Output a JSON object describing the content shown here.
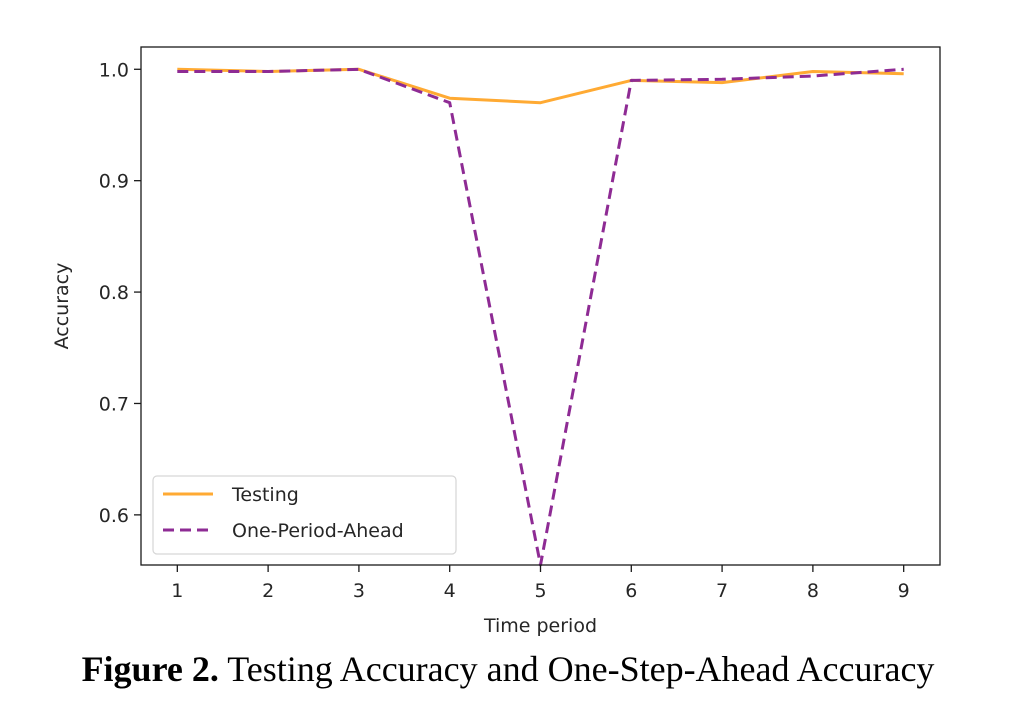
{
  "chart_data": {
    "type": "line",
    "x": [
      1,
      2,
      3,
      4,
      5,
      6,
      7,
      8,
      9
    ],
    "xticks": [
      "1",
      "2",
      "3",
      "4",
      "5",
      "6",
      "7",
      "8",
      "9"
    ],
    "yticks": [
      "1.0",
      "0.9",
      "0.8",
      "0.7",
      "0.6"
    ],
    "ytick_values": [
      1.0,
      0.9,
      0.8,
      0.7,
      0.6
    ],
    "xlim": [
      0.6,
      9.4
    ],
    "ylim": [
      0.555,
      1.02
    ],
    "xlabel": "Time period",
    "ylabel": "Accuracy",
    "grid": false,
    "legend_position": "lower-left",
    "series": [
      {
        "name": "Testing",
        "color": "#ffaa33",
        "style": "solid",
        "values": [
          1.0,
          0.998,
          1.0,
          0.974,
          0.97,
          0.99,
          0.988,
          0.998,
          0.996
        ]
      },
      {
        "name": "One-Period-Ahead",
        "color": "#8e2b94",
        "style": "dashed",
        "values": [
          0.998,
          0.998,
          1.0,
          0.97,
          0.555,
          0.99,
          0.991,
          0.994,
          1.0
        ]
      }
    ]
  },
  "caption": {
    "label": "Figure 2.",
    "text": " Testing Accuracy and One-Step-Ahead Accuracy"
  }
}
